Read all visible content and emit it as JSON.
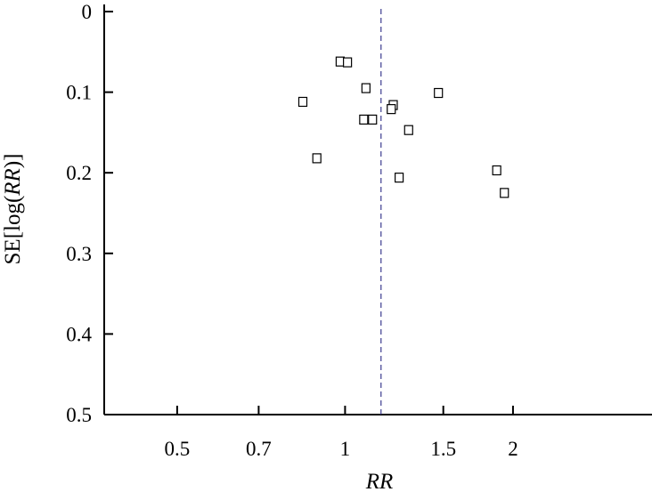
{
  "chart_data": {
    "type": "scatter",
    "xlabel": "RR",
    "ylabel": "SE[log(RR)]",
    "x_scale": "log",
    "y_inverted": true,
    "xlim": [
      0.37,
      3.55
    ],
    "ylim": [
      0,
      0.5
    ],
    "x_ticks": [
      {
        "value": 0.5,
        "label": "0.5"
      },
      {
        "value": 0.7,
        "label": "0.7"
      },
      {
        "value": 1,
        "label": "1"
      },
      {
        "value": 1.5,
        "label": "1.5"
      },
      {
        "value": 2,
        "label": "2"
      }
    ],
    "y_ticks": [
      {
        "value": 0,
        "label": "0"
      },
      {
        "value": 0.1,
        "label": "0.1"
      },
      {
        "value": 0.2,
        "label": "0.2"
      },
      {
        "value": 0.3,
        "label": "0.3"
      },
      {
        "value": 0.4,
        "label": "0.4"
      },
      {
        "value": 0.5,
        "label": "0.5"
      }
    ],
    "reference_line_x": 1.16,
    "grid": false,
    "points": [
      {
        "x": 0.98,
        "y": 0.062
      },
      {
        "x": 1.01,
        "y": 0.063
      },
      {
        "x": 0.84,
        "y": 0.112
      },
      {
        "x": 1.09,
        "y": 0.095
      },
      {
        "x": 0.89,
        "y": 0.182
      },
      {
        "x": 1.08,
        "y": 0.134
      },
      {
        "x": 1.12,
        "y": 0.134
      },
      {
        "x": 1.22,
        "y": 0.116
      },
      {
        "x": 1.21,
        "y": 0.121
      },
      {
        "x": 1.3,
        "y": 0.147
      },
      {
        "x": 1.25,
        "y": 0.206
      },
      {
        "x": 1.47,
        "y": 0.101
      },
      {
        "x": 1.87,
        "y": 0.197
      },
      {
        "x": 1.93,
        "y": 0.225
      }
    ]
  }
}
